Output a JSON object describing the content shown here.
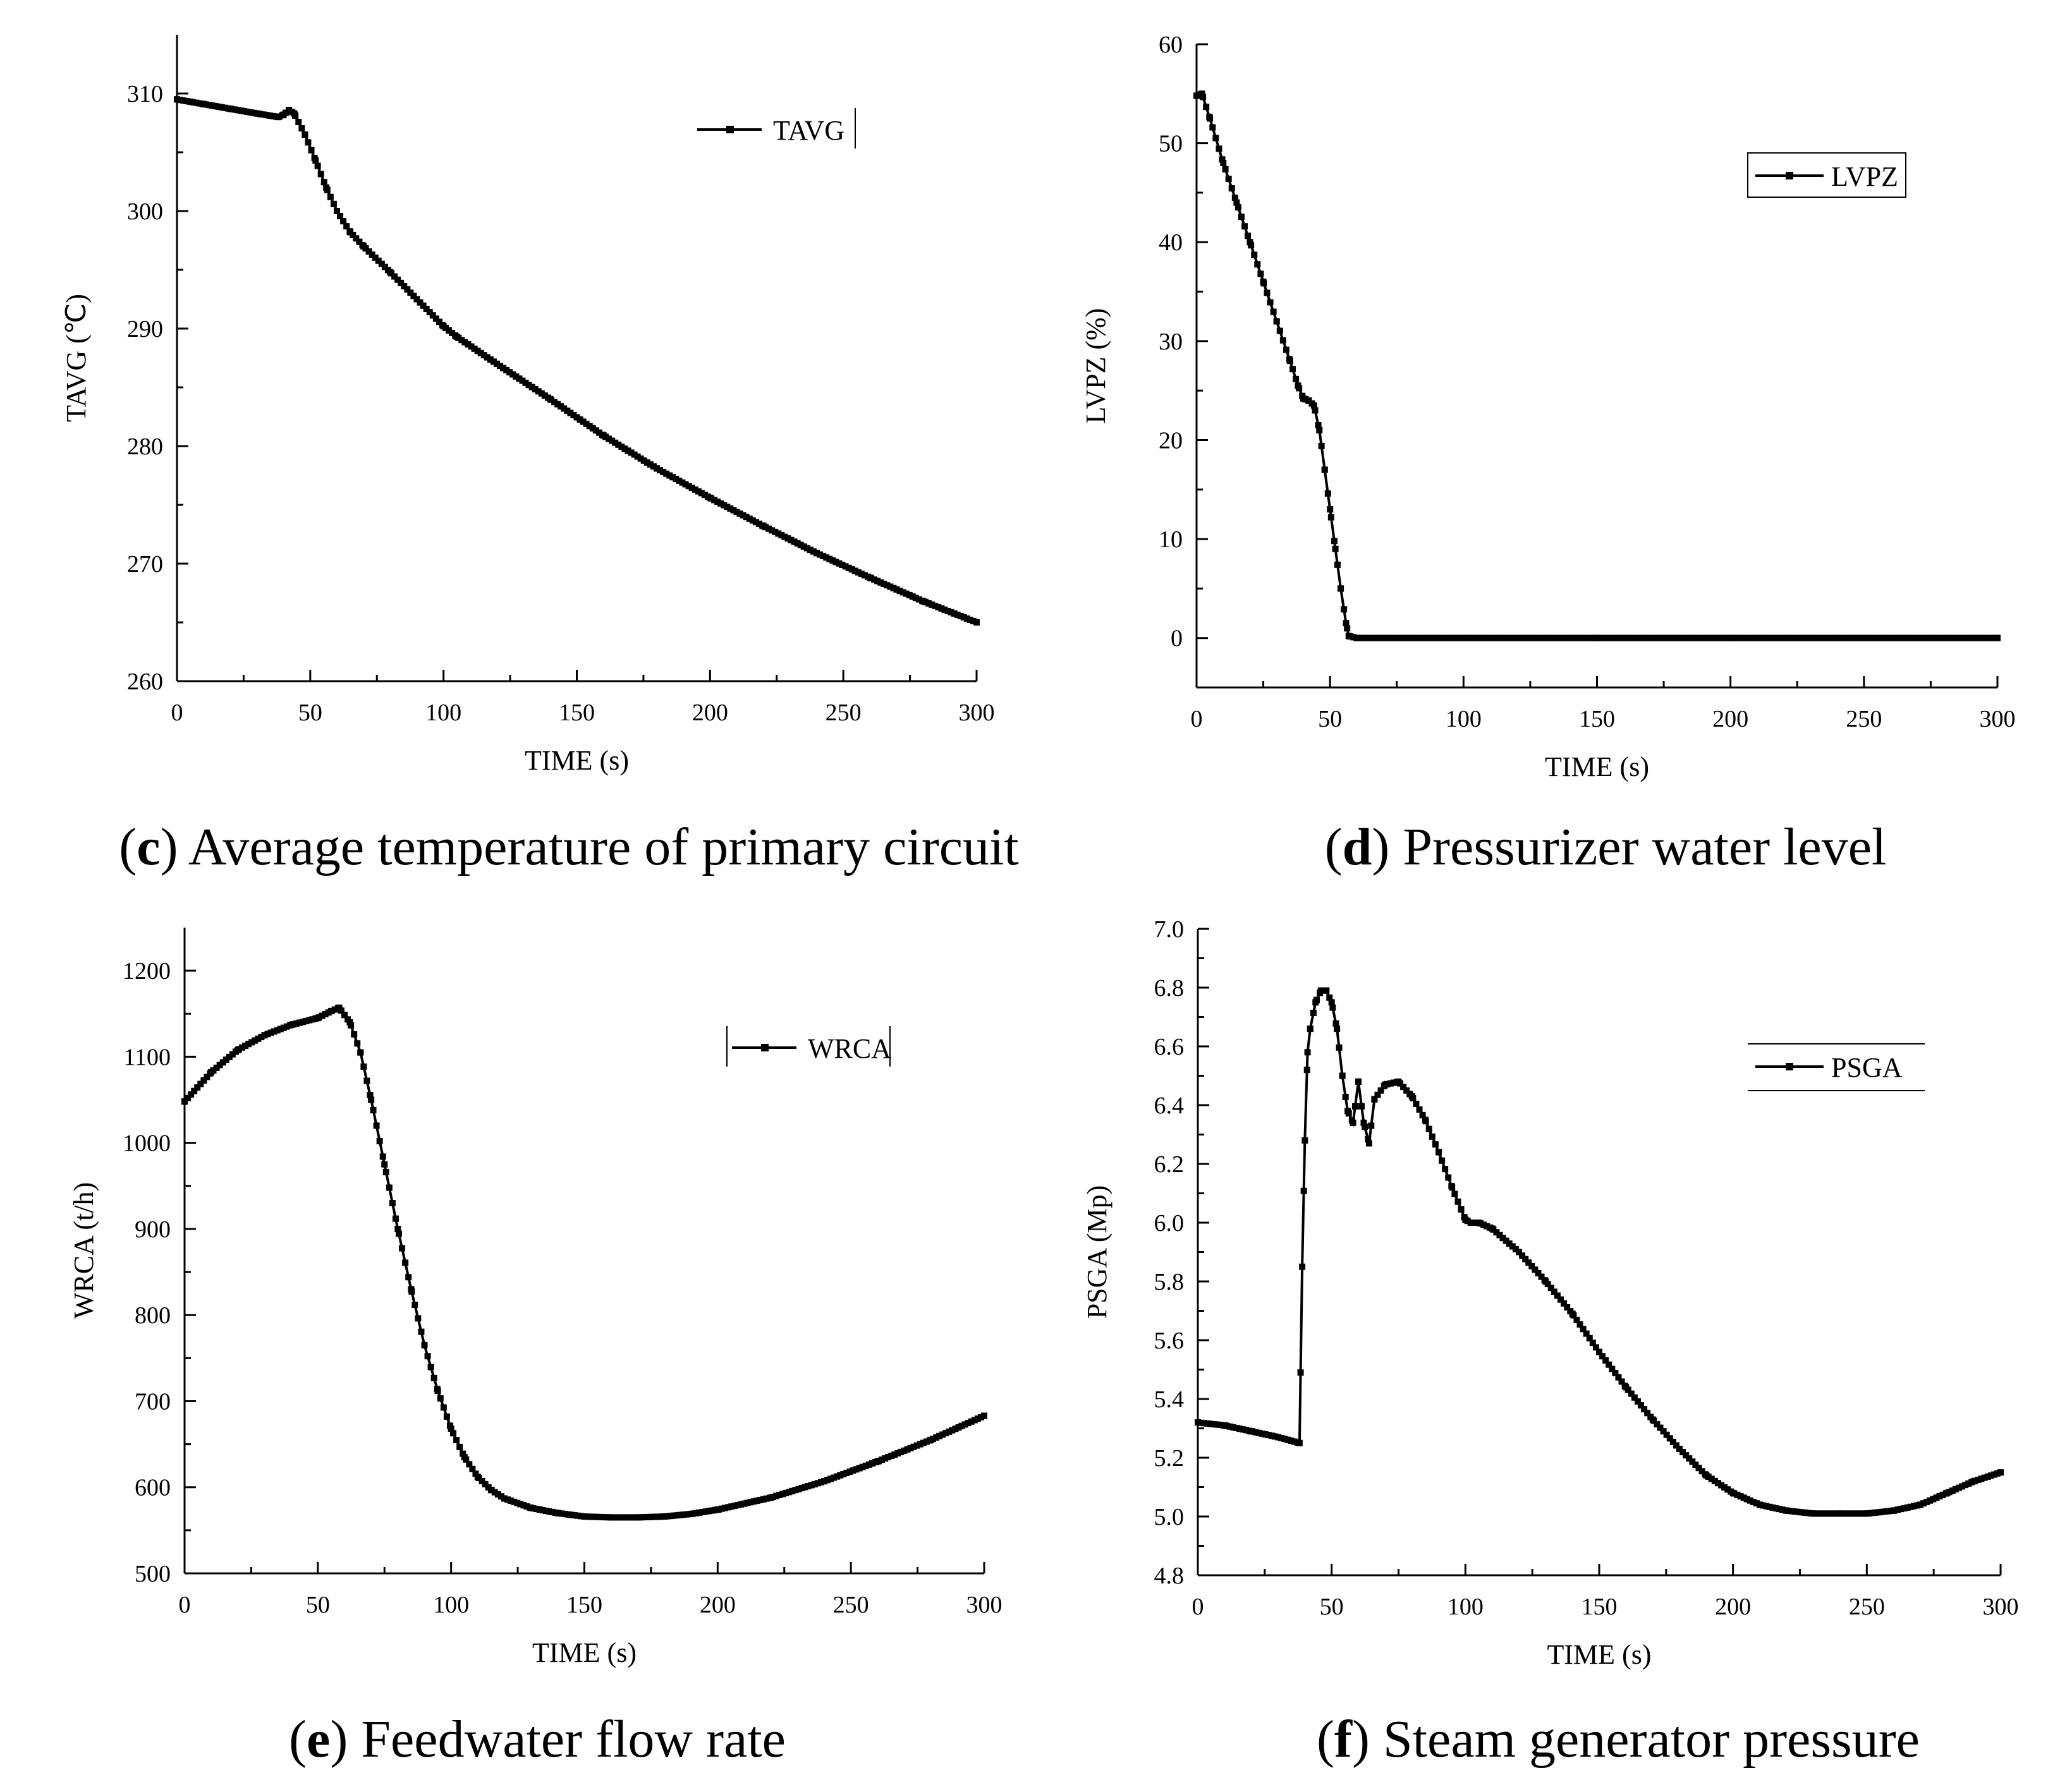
{
  "figure": {
    "captions": [
      {
        "letter": "c",
        "text": "Average temperature of primary circuit"
      },
      {
        "letter": "d",
        "text": "Pressurizer water level"
      },
      {
        "letter": "e",
        "text": "Feedwater flow rate"
      },
      {
        "letter": "f",
        "text": "Steam generator pressure"
      }
    ]
  },
  "chart_data": [
    {
      "type": "line",
      "panel": "c",
      "title": "",
      "xlabel": "TIME (s)",
      "ylabel": "TAVG (℃)",
      "xlim": [
        0,
        300
      ],
      "ylim": [
        260,
        315
      ],
      "xticks": [
        0,
        50,
        100,
        150,
        200,
        250,
        300
      ],
      "yticks": [
        260,
        270,
        280,
        290,
        300,
        310
      ],
      "legend_position": "top-right",
      "series": [
        {
          "name": "TAVG",
          "x": [
            0,
            10,
            20,
            30,
            38,
            40,
            42,
            44,
            48,
            52,
            56,
            60,
            65,
            70,
            80,
            90,
            100,
            105,
            120,
            140,
            160,
            180,
            200,
            220,
            240,
            260,
            280,
            300
          ],
          "values": [
            309.5,
            309.1,
            308.7,
            308.3,
            308.0,
            308.2,
            308.6,
            308.3,
            306.5,
            304.3,
            302.0,
            300.0,
            298.2,
            297.0,
            294.8,
            292.5,
            290.2,
            289.3,
            287.0,
            284.0,
            280.9,
            278.1,
            275.6,
            273.2,
            270.9,
            268.8,
            266.8,
            265.0
          ]
        }
      ]
    },
    {
      "type": "line",
      "panel": "d",
      "title": "",
      "xlabel": "TIME (s)",
      "ylabel": "LVPZ (%)",
      "xlim": [
        0,
        300
      ],
      "ylim": [
        -5,
        60
      ],
      "xticks": [
        0,
        50,
        100,
        150,
        200,
        250,
        300
      ],
      "yticks": [
        0,
        10,
        20,
        30,
        40,
        50,
        60
      ],
      "legend_position": "top-right",
      "series": [
        {
          "name": "LVPZ",
          "x": [
            0,
            2,
            5,
            10,
            15,
            20,
            25,
            30,
            35,
            38,
            40,
            42,
            44,
            46,
            48,
            50,
            52,
            54,
            56,
            57,
            60,
            100,
            150,
            200,
            250,
            300
          ],
          "values": [
            54.8,
            55.0,
            52.5,
            48.0,
            44.0,
            40.0,
            36.0,
            32.0,
            28.0,
            25.5,
            24.2,
            24.0,
            23.5,
            21.0,
            17.0,
            13.0,
            9.0,
            5.0,
            1.5,
            0.2,
            0,
            0,
            0,
            0,
            0,
            0
          ]
        }
      ]
    },
    {
      "type": "line",
      "panel": "e",
      "title": "",
      "xlabel": "TIME (s)",
      "ylabel": "WRCA (t/h)",
      "xlim": [
        0,
        300
      ],
      "ylim": [
        500,
        1250
      ],
      "xticks": [
        0,
        50,
        100,
        150,
        200,
        250,
        300
      ],
      "yticks": [
        500,
        600,
        700,
        800,
        900,
        1000,
        1100,
        1200
      ],
      "legend_position": "top-right",
      "series": [
        {
          "name": "WRCA",
          "x": [
            0,
            10,
            20,
            30,
            40,
            50,
            55,
            58,
            62,
            66,
            70,
            75,
            80,
            85,
            90,
            95,
            100,
            105,
            110,
            115,
            120,
            130,
            140,
            150,
            160,
            170,
            180,
            190,
            200,
            220,
            240,
            260,
            280,
            300
          ],
          "values": [
            1048,
            1082,
            1108,
            1125,
            1137,
            1145,
            1153,
            1157,
            1140,
            1105,
            1050,
            975,
            900,
            830,
            765,
            712,
            668,
            635,
            612,
            597,
            587,
            576,
            570,
            566,
            565,
            565,
            566,
            569,
            574,
            588,
            607,
            630,
            655,
            683
          ]
        }
      ]
    },
    {
      "type": "line",
      "panel": "f",
      "title": "",
      "xlabel": "TIME (s)",
      "ylabel": "PSGA (Mp)",
      "xlim": [
        0,
        300
      ],
      "ylim": [
        4.8,
        7.0
      ],
      "xticks": [
        0,
        50,
        100,
        150,
        200,
        250,
        300
      ],
      "yticks": [
        4.8,
        5.0,
        5.2,
        5.4,
        5.6,
        5.8,
        6.0,
        6.2,
        6.4,
        6.6,
        6.8,
        7.0
      ],
      "legend_position": "top-right",
      "series": [
        {
          "name": "PSGA",
          "x": [
            0,
            10,
            20,
            30,
            38,
            39,
            40,
            41,
            42,
            44,
            46,
            48,
            50,
            52,
            54,
            56,
            58,
            60,
            62,
            64,
            66,
            70,
            75,
            80,
            85,
            90,
            95,
            100,
            102,
            105,
            110,
            120,
            130,
            140,
            150,
            160,
            170,
            180,
            190,
            200,
            210,
            220,
            230,
            240,
            250,
            260,
            270,
            280,
            290,
            300
          ],
          "values": [
            5.32,
            5.31,
            5.29,
            5.27,
            5.25,
            5.85,
            6.28,
            6.58,
            6.66,
            6.75,
            6.79,
            6.79,
            6.75,
            6.66,
            6.5,
            6.38,
            6.34,
            6.48,
            6.34,
            6.27,
            6.42,
            6.47,
            6.48,
            6.43,
            6.35,
            6.24,
            6.12,
            6.01,
            6.0,
            6.0,
            5.98,
            5.9,
            5.8,
            5.69,
            5.56,
            5.44,
            5.33,
            5.23,
            5.14,
            5.08,
            5.04,
            5.02,
            5.01,
            5.01,
            5.01,
            5.02,
            5.04,
            5.08,
            5.12,
            5.15
          ]
        }
      ]
    }
  ]
}
